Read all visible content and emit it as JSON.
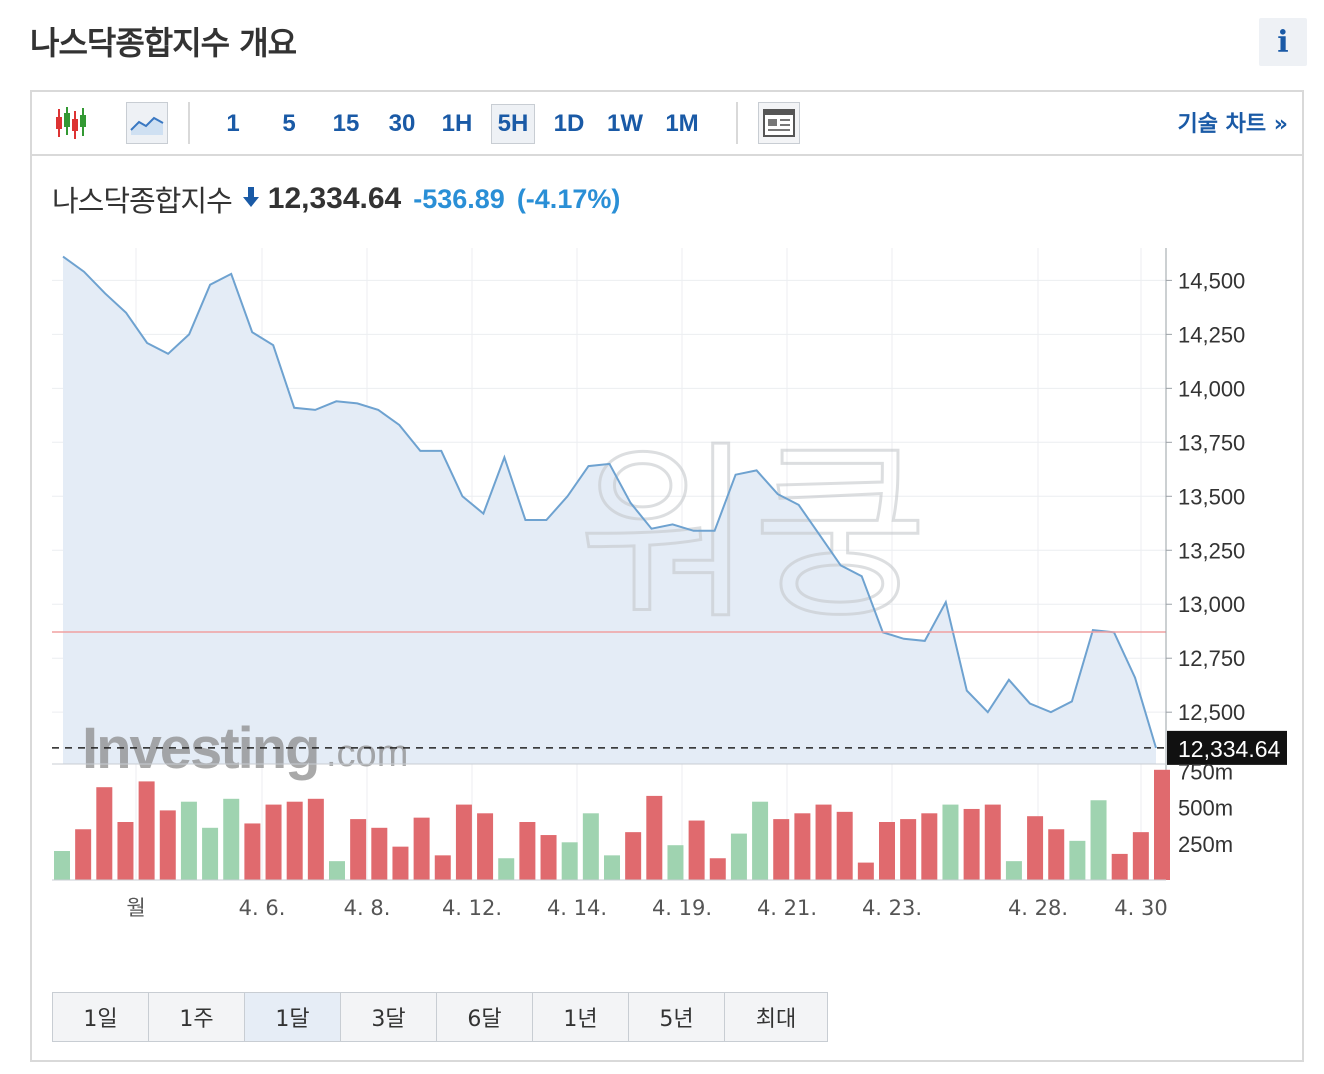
{
  "page": {
    "title": "나스닥종합지수 개요",
    "info_label": "i"
  },
  "toolbar": {
    "chart_type_icons": [
      "candlestick-icon",
      "area-chart-icon"
    ],
    "timeframes": [
      "1",
      "5",
      "15",
      "30",
      "1H",
      "5H",
      "1D",
      "1W",
      "1M"
    ],
    "active_timeframe": "5H",
    "layout_icon": "panel-layout-icon",
    "technical_chart_label": "기술 차트 »"
  },
  "quote": {
    "name": "나스닥종합지수",
    "direction": "down",
    "price": "12,334.64",
    "change": "-536.89",
    "change_pct": "(-4.17%)"
  },
  "ranges": {
    "items": [
      "1일",
      "1주",
      "1달",
      "3달",
      "6달",
      "1년",
      "5년",
      "최대"
    ],
    "active": "1달"
  },
  "colors": {
    "line": "#6ea2d0",
    "area": "#e4ecf6",
    "reference": "#f0a0a0",
    "down_vol": "#e06a6e",
    "up_vol": "#9fd3b0",
    "accent": "#1a5aa6",
    "change": "#2a8fd6"
  },
  "chart_data": {
    "type": "area",
    "series": [
      {
        "values": [
          14610,
          14540,
          14440,
          14350,
          14210,
          14160,
          14250,
          14480,
          14530,
          14260,
          14200,
          13910,
          13900,
          13940,
          13930,
          13900,
          13830,
          13710,
          13710,
          13500,
          13420,
          13680,
          13390,
          13390,
          13500,
          13640,
          13650,
          13470,
          13350,
          13370,
          13340,
          13340,
          13600,
          13620,
          13510,
          13460,
          13320,
          13180,
          13130,
          12870,
          12840,
          12830,
          13010,
          12600,
          12500,
          12650,
          12540,
          12500,
          12550,
          12880,
          12870,
          12660,
          12334.64
        ]
      }
    ],
    "ylim": [
      12260,
      14650
    ],
    "y_ticks": [
      "14,500",
      "14,250",
      "14,000",
      "13,750",
      "13,500",
      "13,250",
      "13,000",
      "12,750",
      "12,500"
    ],
    "y_tick_values": [
      14500,
      14250,
      14000,
      13750,
      13500,
      13250,
      13000,
      12750,
      12500
    ],
    "reference_value": 12871.53,
    "last_label": "12,334.64",
    "x_ticks": [
      "월",
      "4. 6.",
      "4. 8.",
      "4. 12.",
      "4. 14.",
      "4. 19.",
      "4. 21.",
      "4. 23.",
      "4. 28.",
      "4. 30"
    ],
    "volume": {
      "values": [
        200,
        350,
        640,
        400,
        680,
        480,
        540,
        360,
        560,
        390,
        520,
        540,
        560,
        130,
        420,
        360,
        230,
        430,
        170,
        520,
        460,
        150,
        400,
        310,
        260,
        460,
        170,
        330,
        580,
        240,
        410,
        150,
        320,
        540,
        420,
        460,
        520,
        470,
        120,
        400,
        420,
        460,
        520,
        490,
        520,
        130,
        440,
        350,
        270,
        550,
        180,
        330,
        760
      ],
      "direction": [
        "up",
        "down",
        "down",
        "down",
        "down",
        "down",
        "up",
        "up",
        "up",
        "down",
        "down",
        "down",
        "down",
        "up",
        "down",
        "down",
        "down",
        "down",
        "down",
        "down",
        "down",
        "up",
        "down",
        "down",
        "up",
        "up",
        "up",
        "down",
        "down",
        "up",
        "down",
        "down",
        "up",
        "up",
        "down",
        "down",
        "down",
        "down",
        "down",
        "down",
        "down",
        "down",
        "up",
        "down",
        "down",
        "up",
        "down",
        "down",
        "up",
        "up",
        "down",
        "down",
        "down"
      ],
      "ticks": [
        "750m",
        "500m",
        "250m"
      ],
      "tick_values": [
        750,
        500,
        250
      ],
      "ylim": [
        0,
        800
      ]
    },
    "watermarks": [
      "Investing.com",
      "워쿵"
    ]
  }
}
